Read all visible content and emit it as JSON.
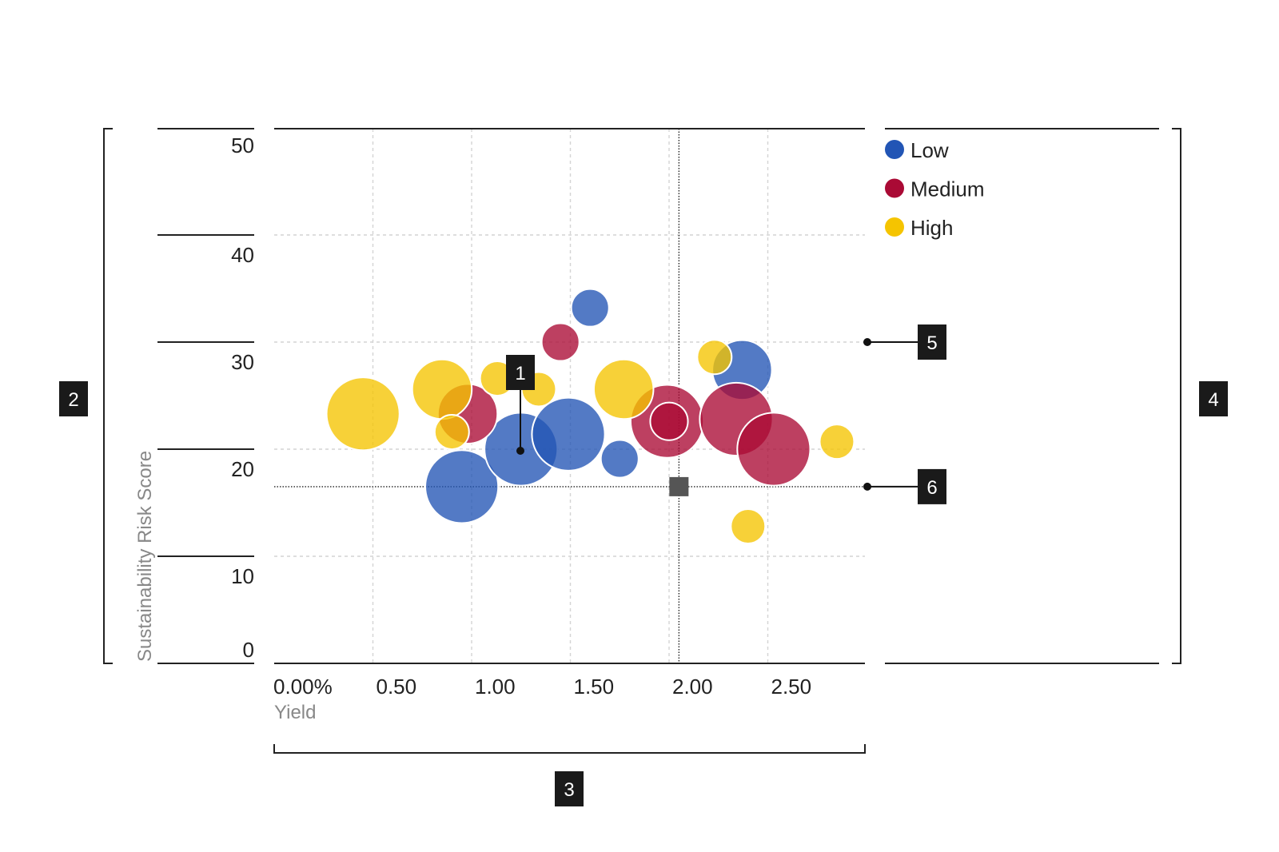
{
  "chart_data": {
    "type": "scatter",
    "variant": "bubble",
    "title": "",
    "xlabel": "Yield",
    "ylabel": "Sustainability Risk Score",
    "xlim": [
      0,
      3.0
    ],
    "ylim": [
      0,
      50
    ],
    "x_ticks": [
      0,
      0.5,
      1.0,
      1.5,
      2.0,
      2.5
    ],
    "x_tick_labels": [
      "0.00%",
      "0.50",
      "1.00",
      "1.50",
      "2.00",
      "2.50"
    ],
    "y_ticks": [
      0,
      10,
      20,
      30,
      40,
      50
    ],
    "y_tick_labels": [
      "0",
      "10",
      "20",
      "30",
      "40",
      "50"
    ],
    "grid": true,
    "legend_position": "top-right",
    "series": [
      {
        "name": "Low",
        "color": "#2255b5",
        "points": [
          {
            "x": 1.6,
            "y": 33.2,
            "size": 12
          },
          {
            "x": 0.95,
            "y": 16.5,
            "size": 45
          },
          {
            "x": 1.25,
            "y": 20.0,
            "size": 45
          },
          {
            "x": 1.49,
            "y": 21.4,
            "size": 45
          },
          {
            "x": 1.75,
            "y": 19.1,
            "size": 12
          },
          {
            "x": 2.37,
            "y": 27.4,
            "size": 30
          }
        ]
      },
      {
        "name": "Medium",
        "color": "#aa0a35",
        "points": [
          {
            "x": 1.45,
            "y": 30.0,
            "size": 12
          },
          {
            "x": 0.98,
            "y": 23.3,
            "size": 30
          },
          {
            "x": 1.99,
            "y": 22.6,
            "size": 45
          },
          {
            "x": 2.34,
            "y": 22.8,
            "size": 45
          },
          {
            "x": 2.53,
            "y": 20.0,
            "size": 45
          },
          {
            "x": 2.0,
            "y": 22.6,
            "size": 12
          }
        ]
      },
      {
        "name": "High",
        "color": "#f5c400",
        "points": [
          {
            "x": 0.45,
            "y": 23.3,
            "size": 45
          },
          {
            "x": 0.85,
            "y": 25.6,
            "size": 30
          },
          {
            "x": 0.9,
            "y": 21.6,
            "size": 10
          },
          {
            "x": 1.13,
            "y": 26.6,
            "size": 10
          },
          {
            "x": 1.34,
            "y": 25.6,
            "size": 10
          },
          {
            "x": 1.77,
            "y": 25.6,
            "size": 30
          },
          {
            "x": 2.23,
            "y": 28.6,
            "size": 10
          },
          {
            "x": 2.4,
            "y": 12.8,
            "size": 10
          },
          {
            "x": 2.85,
            "y": 20.7,
            "size": 10
          }
        ]
      }
    ],
    "reference": {
      "x": 2.05,
      "y": 16.5
    },
    "callouts": [
      "1",
      "2",
      "3",
      "4",
      "5",
      "6"
    ]
  }
}
